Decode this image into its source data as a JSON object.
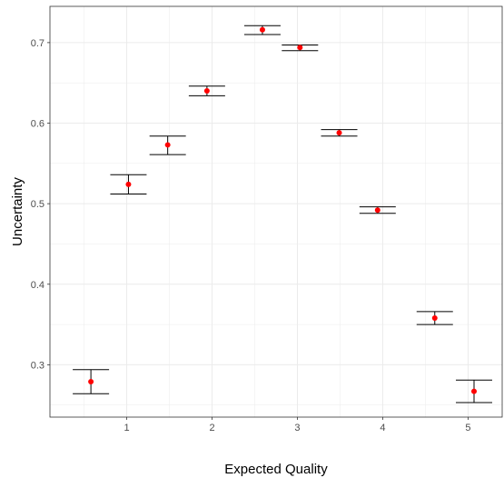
{
  "chart_data": {
    "type": "scatter",
    "xlabel": "Expected Quality",
    "ylabel": "Uncertainty",
    "xlim": [
      0.1,
      5.4
    ],
    "ylim": [
      0.235,
      0.745
    ],
    "x_ticks": [
      "1",
      "2",
      "3",
      "4",
      "5"
    ],
    "y_ticks": [
      "0.3",
      "0.4",
      "0.5",
      "0.6",
      "0.7"
    ],
    "grid": true,
    "point_color": "#ff0000",
    "errorbar_color": "#000000",
    "grid_color": "#ebebeb",
    "points": [
      {
        "x": 0.58,
        "y": 0.279,
        "ymin": 0.264,
        "ymax": 0.294
      },
      {
        "x": 1.02,
        "y": 0.524,
        "ymin": 0.512,
        "ymax": 0.536
      },
      {
        "x": 1.48,
        "y": 0.573,
        "ymin": 0.561,
        "ymax": 0.584
      },
      {
        "x": 1.94,
        "y": 0.64,
        "ymin": 0.634,
        "ymax": 0.646
      },
      {
        "x": 2.59,
        "y": 0.716,
        "ymin": 0.71,
        "ymax": 0.721
      },
      {
        "x": 3.03,
        "y": 0.694,
        "ymin": 0.69,
        "ymax": 0.697
      },
      {
        "x": 3.49,
        "y": 0.588,
        "ymin": 0.584,
        "ymax": 0.592
      },
      {
        "x": 3.94,
        "y": 0.492,
        "ymin": 0.488,
        "ymax": 0.496
      },
      {
        "x": 4.61,
        "y": 0.358,
        "ymin": 0.35,
        "ymax": 0.366
      },
      {
        "x": 5.07,
        "y": 0.267,
        "ymin": 0.253,
        "ymax": 0.281
      }
    ]
  }
}
